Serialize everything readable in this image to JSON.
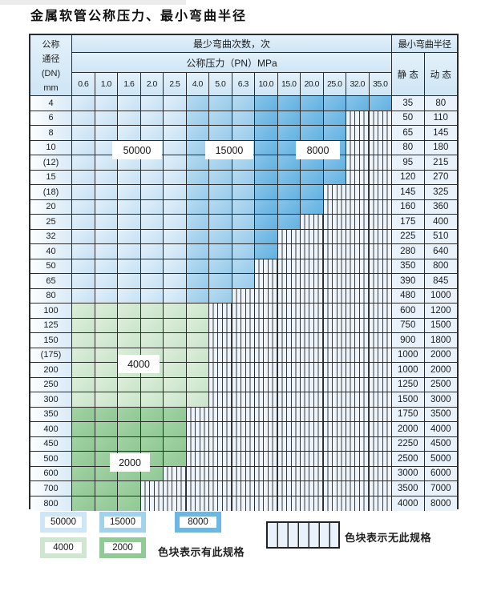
{
  "title": "金属软管公称压力、最小弯曲半径",
  "table": {
    "header": {
      "dn_lines": [
        "公称",
        "通径",
        "(DN)",
        "mm"
      ],
      "cycles_label": "最少弯曲次数，次",
      "pressure_label": "公称压力（PN）MPa",
      "radius_label": "最小弯曲半径",
      "static_label": "静 态",
      "dynamic_label": "动 态"
    }
  },
  "chart_data": {
    "type": "table",
    "title": "金属软管公称压力、最小弯曲半径",
    "pn_columns": [
      "0.6",
      "1.0",
      "1.6",
      "2.0",
      "2.5",
      "4.0",
      "5.0",
      "6.3",
      "10.0",
      "15.0",
      "20.0",
      "25.0",
      "32.0",
      "35.0"
    ],
    "cycle_shading": {
      "blue_rows": {
        "50000": "PN 0.6-2.5",
        "15000": "PN 4.0-6.3",
        "8000": "PN 10.0-35.0"
      },
      "green_rows": {
        "4000": "DN 100-300",
        "2000": "DN 350-800"
      },
      "hatched": "无此规格 (no spec)"
    },
    "rows": [
      {
        "dn": "4",
        "group": "blue",
        "colored_cols": 14,
        "spec_up_to_pn": "35.0",
        "static": "35",
        "dynamic": "80"
      },
      {
        "dn": "6",
        "group": "blue",
        "colored_cols": 12,
        "spec_up_to_pn": "25.0",
        "static": "50",
        "dynamic": "110"
      },
      {
        "dn": "8",
        "group": "blue",
        "colored_cols": 12,
        "spec_up_to_pn": "25.0",
        "static": "65",
        "dynamic": "145"
      },
      {
        "dn": "10",
        "group": "blue",
        "colored_cols": 12,
        "spec_up_to_pn": "25.0",
        "static": "80",
        "dynamic": "180"
      },
      {
        "dn": "(12)",
        "group": "blue",
        "colored_cols": 12,
        "spec_up_to_pn": "25.0",
        "static": "95",
        "dynamic": "215"
      },
      {
        "dn": "15",
        "group": "blue",
        "colored_cols": 12,
        "spec_up_to_pn": "25.0",
        "static": "120",
        "dynamic": "270"
      },
      {
        "dn": "(18)",
        "group": "blue",
        "colored_cols": 11,
        "spec_up_to_pn": "20.0",
        "static": "145",
        "dynamic": "325"
      },
      {
        "dn": "20",
        "group": "blue",
        "colored_cols": 11,
        "spec_up_to_pn": "20.0",
        "static": "160",
        "dynamic": "360"
      },
      {
        "dn": "25",
        "group": "blue",
        "colored_cols": 10,
        "spec_up_to_pn": "15.0",
        "static": "175",
        "dynamic": "400"
      },
      {
        "dn": "32",
        "group": "blue",
        "colored_cols": 9,
        "spec_up_to_pn": "10.0",
        "static": "225",
        "dynamic": "510"
      },
      {
        "dn": "40",
        "group": "blue",
        "colored_cols": 9,
        "spec_up_to_pn": "10.0",
        "static": "280",
        "dynamic": "640"
      },
      {
        "dn": "50",
        "group": "blue",
        "colored_cols": 8,
        "spec_up_to_pn": "6.3",
        "static": "350",
        "dynamic": "800"
      },
      {
        "dn": "65",
        "group": "blue",
        "colored_cols": 8,
        "spec_up_to_pn": "6.3",
        "static": "390",
        "dynamic": "845"
      },
      {
        "dn": "80",
        "group": "blue",
        "colored_cols": 7,
        "spec_up_to_pn": "5.0",
        "static": "480",
        "dynamic": "1000"
      },
      {
        "dn": "100",
        "group": "green-light",
        "colored_cols": 6,
        "spec_up_to_pn": "4.0",
        "static": "600",
        "dynamic": "1200"
      },
      {
        "dn": "125",
        "group": "green-light",
        "colored_cols": 6,
        "spec_up_to_pn": "4.0",
        "static": "750",
        "dynamic": "1500"
      },
      {
        "dn": "150",
        "group": "green-light",
        "colored_cols": 6,
        "spec_up_to_pn": "4.0",
        "static": "900",
        "dynamic": "1800"
      },
      {
        "dn": "(175)",
        "group": "green-light",
        "colored_cols": 6,
        "spec_up_to_pn": "4.0",
        "static": "1000",
        "dynamic": "2000"
      },
      {
        "dn": "200",
        "group": "green-light",
        "colored_cols": 6,
        "spec_up_to_pn": "4.0",
        "static": "1000",
        "dynamic": "2000"
      },
      {
        "dn": "250",
        "group": "green-light",
        "colored_cols": 6,
        "spec_up_to_pn": "4.0",
        "static": "1250",
        "dynamic": "2500"
      },
      {
        "dn": "300",
        "group": "green-light",
        "colored_cols": 6,
        "spec_up_to_pn": "4.0",
        "static": "1500",
        "dynamic": "3000"
      },
      {
        "dn": "350",
        "group": "green-dark",
        "colored_cols": 5,
        "spec_up_to_pn": "2.5",
        "static": "1750",
        "dynamic": "3500"
      },
      {
        "dn": "400",
        "group": "green-dark",
        "colored_cols": 5,
        "spec_up_to_pn": "2.5",
        "static": "2000",
        "dynamic": "4000"
      },
      {
        "dn": "450",
        "group": "green-dark",
        "colored_cols": 5,
        "spec_up_to_pn": "2.5",
        "static": "2250",
        "dynamic": "4500"
      },
      {
        "dn": "500",
        "group": "green-dark",
        "colored_cols": 5,
        "spec_up_to_pn": "2.5",
        "static": "2500",
        "dynamic": "5000"
      },
      {
        "dn": "600",
        "group": "green-dark",
        "colored_cols": 4,
        "spec_up_to_pn": "2.0",
        "static": "3000",
        "dynamic": "6000"
      },
      {
        "dn": "700",
        "group": "green-dark",
        "colored_cols": 3,
        "spec_up_to_pn": "1.6",
        "static": "3500",
        "dynamic": "7000"
      },
      {
        "dn": "800",
        "group": "green-dark",
        "colored_cols": 3,
        "spec_up_to_pn": "1.6",
        "static": "4000",
        "dynamic": "8000"
      }
    ]
  },
  "overlays": {
    "l50000": "50000",
    "l15000": "15000",
    "l8000": "8000",
    "l4000": "4000",
    "l2000": "2000"
  },
  "legend": {
    "items": [
      {
        "value": "50000",
        "color": "#cde6f8"
      },
      {
        "value": "15000",
        "color": "#a3d2ef"
      },
      {
        "value": "8000",
        "color": "#6bb8e6"
      },
      {
        "value": "4000",
        "color": "#cfe7d0"
      },
      {
        "value": "2000",
        "color": "#90cb95"
      }
    ],
    "available_label": "色块表示有此规格",
    "unavailable_label": "色块表示无此规格"
  },
  "colors": {
    "grid": "#2b2b2b",
    "header_bg": "#d5e9f7",
    "hatch_bg": "#edf4fb",
    "blue_50000": "#cde6f8",
    "blue_15000": "#a3d2ef",
    "blue_8000": "#6bb8e6",
    "green_4000": "#cfe7d0",
    "green_2000": "#90cb95"
  }
}
